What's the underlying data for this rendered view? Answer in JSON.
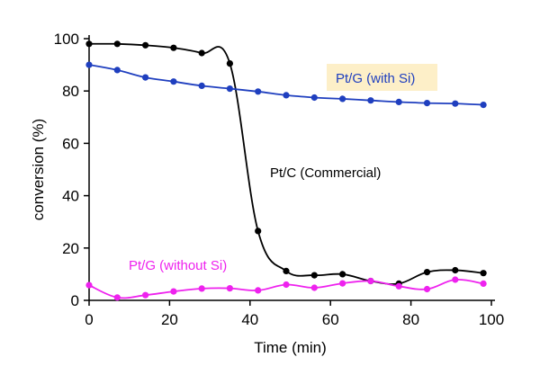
{
  "chart_data": {
    "type": "line",
    "xlabel": "Time (min)",
    "ylabel": "conversion (%)",
    "xlim": [
      0,
      100
    ],
    "ylim": [
      0,
      100
    ],
    "xticks": [
      "0",
      "20",
      "40",
      "60",
      "80",
      "100"
    ],
    "yticks": [
      "0",
      "20",
      "40",
      "60",
      "80",
      "100"
    ],
    "grid": false,
    "series": [
      {
        "name": "Pt/C (Commercial)",
        "color": "#000000",
        "x": [
          0,
          7,
          14,
          21,
          28,
          35,
          42,
          49,
          56,
          63,
          70,
          77,
          84,
          91,
          98
        ],
        "y": [
          98,
          98,
          97.5,
          96.5,
          94.5,
          90.5,
          26.5,
          11.2,
          9.6,
          10,
          7.4,
          6.4,
          10.8,
          11.5,
          10.4
        ]
      },
      {
        "name": "Pt/G (with Si)",
        "color": "#1f3fbf",
        "x": [
          0,
          7,
          14,
          21,
          28,
          35,
          42,
          49,
          56,
          63,
          70,
          77,
          84,
          91,
          98
        ],
        "y": [
          90,
          88,
          85.2,
          83.6,
          82,
          80.9,
          79.8,
          78.4,
          77.5,
          77,
          76.4,
          75.8,
          75.4,
          75.2,
          74.7
        ]
      },
      {
        "name": "Pt/G (without Si)",
        "color": "#ee22ee",
        "x": [
          0,
          7,
          14,
          21,
          28,
          35,
          42,
          49,
          56,
          63,
          70,
          77,
          84,
          91,
          98
        ],
        "y": [
          5.8,
          1.1,
          2,
          3.4,
          4.5,
          4.6,
          3.8,
          6,
          4.8,
          6.5,
          7.4,
          5.4,
          4.3,
          7.9,
          6.4
        ]
      }
    ]
  }
}
